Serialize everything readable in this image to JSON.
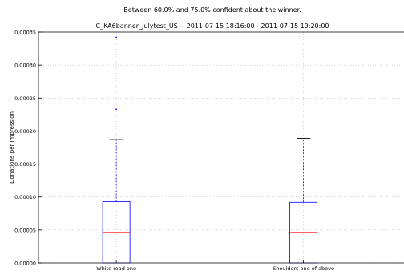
{
  "chart_data": {
    "type": "box",
    "suptitle": "Between 60.0% and 75.0% confident about the winner.",
    "title": "C_KA6banner_Julytest_US -- 2011-07-15 18:16:00 - 2011-07-15 19:20:00",
    "xlabel": "",
    "ylabel": "Donations per Impression",
    "ylim": [
      0,
      0.00035
    ],
    "yticks": [
      "0.00000",
      "0.00005",
      "0.00010",
      "0.00015",
      "0.00020",
      "0.00025",
      "0.00030",
      "0.00035"
    ],
    "grid": true,
    "categories": [
      "White road one",
      "Shoulders one of above"
    ],
    "boxes": [
      {
        "category": "White road one",
        "q1": 0,
        "median": 4.65e-05,
        "q3": 9.3e-05,
        "whisker_low": 0,
        "whisker_high": 0.000187,
        "fliers": [
          0.000233,
          0.000342
        ]
      },
      {
        "category": "Shoulders one of above",
        "q1": 0,
        "median": 4.65e-05,
        "q3": 9.2e-05,
        "whisker_low": 0,
        "whisker_high": 0.000189,
        "fliers": []
      }
    ],
    "colors": {
      "box": "#0000ff",
      "median": "#ff0000",
      "whisker": "#0000ff",
      "cap": "#000000",
      "grid": "#bdbdbd"
    }
  }
}
